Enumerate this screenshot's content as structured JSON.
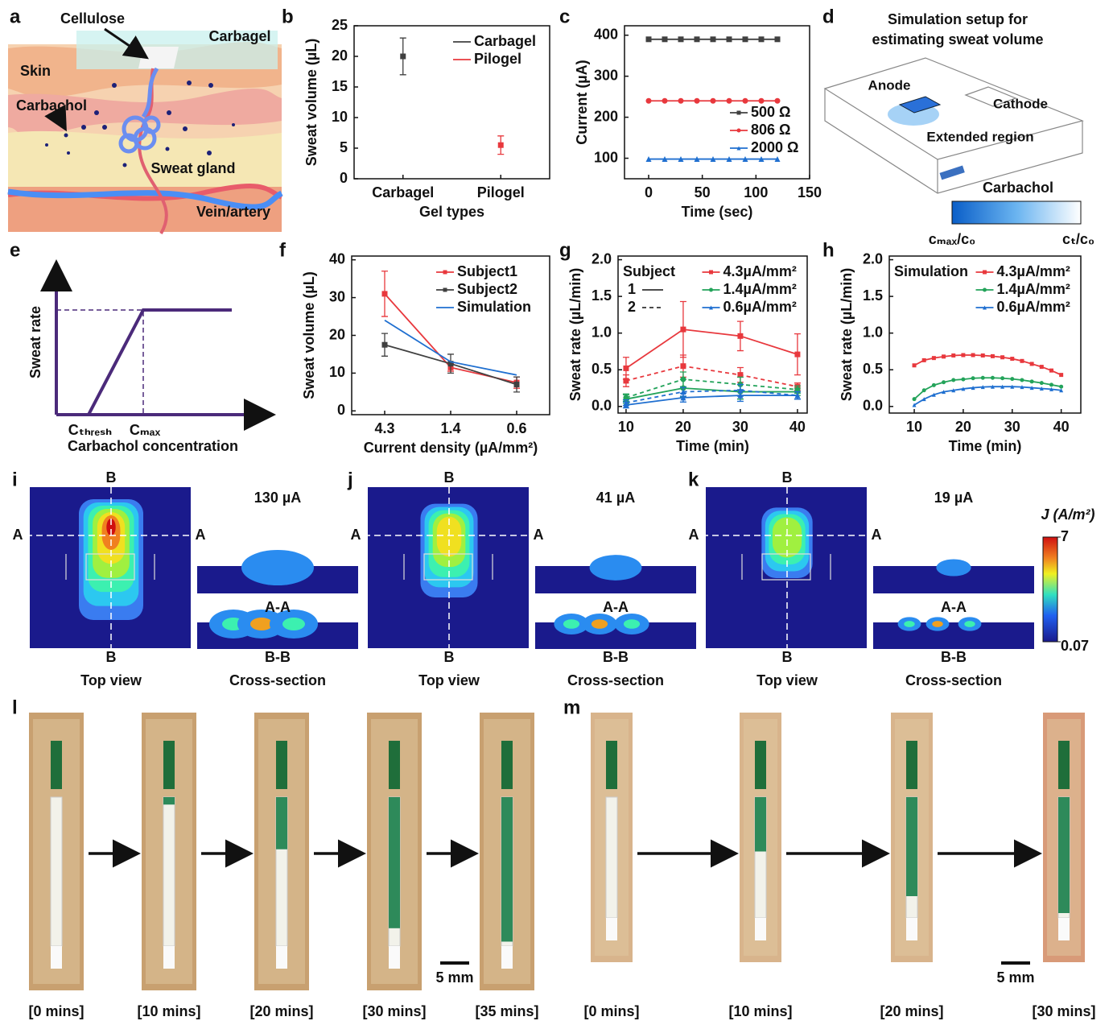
{
  "panel_a": {
    "letter": "a",
    "labels": [
      "Cellulose",
      "Carbagel",
      "Skin",
      "Carbachol",
      "Sweat gland",
      "Vein/artery"
    ]
  },
  "chart_data": [
    {
      "panel": "b",
      "type": "scatter",
      "categories": [
        "Carbagel",
        "Pilogel"
      ],
      "x_label": "Gel types",
      "y_label": "Sweat volume (µL)",
      "ylim": [
        0,
        25
      ],
      "yticks": [
        0,
        5,
        10,
        15,
        20,
        25
      ],
      "legend": "upper right",
      "series": [
        {
          "name": "Carbagel",
          "color": "#404040",
          "marker": "square",
          "values": [
            20,
            null
          ],
          "errors": [
            3,
            null
          ]
        },
        {
          "name": "Pilogel",
          "color": "#e8383d",
          "marker": "square",
          "values": [
            null,
            5.5
          ],
          "errors": [
            null,
            1.5
          ]
        }
      ]
    },
    {
      "panel": "c",
      "type": "line",
      "x_label": "Time (sec)",
      "y_label": "Current (µA)",
      "xlim": [
        -22.5,
        150
      ],
      "xticks": [
        0,
        50,
        100,
        150
      ],
      "ylim": [
        50,
        423
      ],
      "yticks": [
        100,
        200,
        300,
        400
      ],
      "legend": "lower right",
      "x": [
        0,
        15,
        30,
        45,
        60,
        75,
        90,
        105,
        120
      ],
      "series": [
        {
          "name": "500 Ω",
          "color": "#404040",
          "marker": "square",
          "values": [
            390,
            390,
            390,
            390,
            390,
            390,
            390,
            390,
            390
          ]
        },
        {
          "name": "806 Ω",
          "color": "#e8383d",
          "marker": "circle",
          "values": [
            240,
            240,
            240,
            240,
            240,
            240,
            240,
            240,
            240
          ]
        },
        {
          "name": "2000 Ω",
          "color": "#1f6fd0",
          "marker": "triangle",
          "values": [
            98,
            98,
            98,
            98,
            98,
            98,
            98,
            98,
            98
          ]
        }
      ]
    },
    {
      "panel": "f",
      "type": "line",
      "categories": [
        "4.3",
        "1.4",
        "0.6"
      ],
      "x_label": "Current density (µA/mm²)",
      "y_label": "Sweat volume (µL)",
      "ylim": [
        -1,
        41
      ],
      "yticks": [
        0,
        10,
        20,
        30,
        40
      ],
      "legend": "upper right",
      "series": [
        {
          "name": "Subject1",
          "color": "#e8383d",
          "marker": "square",
          "values": [
            31,
            11.5,
            7.5
          ],
          "errors": [
            6,
            1,
            1.5
          ]
        },
        {
          "name": "Subject2",
          "color": "#404040",
          "marker": "square",
          "values": [
            17.5,
            12.5,
            7
          ],
          "errors": [
            3,
            2.5,
            2
          ]
        },
        {
          "name": "Simulation",
          "color": "#1f6fd0",
          "values": [
            24,
            13,
            9.5
          ]
        }
      ]
    },
    {
      "panel": "g",
      "type": "line",
      "x_label": "Time (min)",
      "y_label": "Sweat rate (µL/min)",
      "xlim": [
        8.6,
        41.7
      ],
      "xticks": [
        10,
        20,
        30,
        40
      ],
      "ylim": [
        -0.09,
        2.05
      ],
      "yticks": [
        {
          "value": 0,
          "label": "0.0"
        },
        0.5,
        {
          "value": 1,
          "label": "1.0"
        },
        1.5,
        {
          "value": 2,
          "label": "2.0"
        }
      ],
      "legend": "upper right",
      "legend_title": "Subject",
      "line_styles": [
        {
          "label": "1",
          "dash": "solid"
        },
        {
          "label": "2",
          "dash": "dashed"
        }
      ],
      "legend_entries": [
        {
          "label": "4.3µA/mm²",
          "color": "#e8383d"
        },
        {
          "label": "1.4µA/mm²",
          "color": "#23a35a"
        },
        {
          "label": "0.6µA/mm²",
          "color": "#1f6fd0"
        }
      ],
      "x": [
        10,
        20,
        30,
        40
      ],
      "series": [
        {
          "color": "#e8383d",
          "dash": "solid",
          "marker": "square",
          "values": [
            0.52,
            1.05,
            0.96,
            0.71
          ],
          "errors": [
            0.15,
            0.38,
            0.2,
            0.28
          ]
        },
        {
          "color": "#e8383d",
          "dash": "dashed",
          "marker": "square",
          "values": [
            0.35,
            0.55,
            0.43,
            0.27
          ],
          "errors": [
            0.08,
            0.15,
            0.1,
            0.05
          ]
        },
        {
          "color": "#23a35a",
          "dash": "solid",
          "marker": "circle",
          "values": [
            0.1,
            0.25,
            0.2,
            0.2
          ],
          "errors": [
            0.06,
            0.12,
            0.1,
            0.05
          ]
        },
        {
          "color": "#23a35a",
          "dash": "dashed",
          "marker": "circle",
          "values": [
            0.12,
            0.37,
            0.3,
            0.23
          ],
          "errors": [
            0.05,
            0.1,
            0.1,
            0.05
          ]
        },
        {
          "color": "#1f6fd0",
          "dash": "solid",
          "marker": "triangle",
          "values": [
            0.02,
            0.12,
            0.15,
            0.15
          ],
          "errors": [
            0.04,
            0.06,
            0.08,
            0.05
          ]
        },
        {
          "color": "#1f6fd0",
          "dash": "dashed",
          "marker": "triangle",
          "values": [
            0.05,
            0.2,
            0.22,
            0.15
          ],
          "errors": [
            0.04,
            0.06,
            0.08,
            0.05
          ]
        }
      ]
    },
    {
      "panel": "h",
      "type": "line",
      "x_label": "Time (min)",
      "y_label": "Sweat rate (µL/min)",
      "xlim": [
        4.9,
        44
      ],
      "xticks": [
        10,
        20,
        30,
        40
      ],
      "ylim": [
        -0.09,
        2.05
      ],
      "yticks": [
        {
          "value": 0,
          "label": "0.0"
        },
        0.5,
        {
          "value": 1,
          "label": "1.0"
        },
        1.5,
        {
          "value": 2,
          "label": "2.0"
        }
      ],
      "legend": "upper right",
      "legend_title": "Simulation",
      "x": [
        10,
        12,
        14,
        16,
        18,
        20,
        22,
        24,
        26,
        28,
        30,
        32,
        34,
        36,
        38,
        40
      ],
      "series": [
        {
          "name": "4.3µA/mm²",
          "color": "#e8383d",
          "marker": "square",
          "values": [
            0.56,
            0.63,
            0.66,
            0.68,
            0.695,
            0.7,
            0.7,
            0.695,
            0.685,
            0.67,
            0.65,
            0.62,
            0.58,
            0.54,
            0.49,
            0.43
          ]
        },
        {
          "name": "1.4µA/mm²",
          "color": "#23a35a",
          "marker": "circle",
          "values": [
            0.1,
            0.22,
            0.29,
            0.33,
            0.36,
            0.37,
            0.385,
            0.39,
            0.39,
            0.385,
            0.375,
            0.36,
            0.34,
            0.32,
            0.295,
            0.27
          ]
        },
        {
          "name": "0.6µA/mm²",
          "color": "#1f6fd0",
          "marker": "triangle",
          "values": [
            0.02,
            0.1,
            0.16,
            0.2,
            0.22,
            0.24,
            0.255,
            0.265,
            0.27,
            0.27,
            0.27,
            0.265,
            0.255,
            0.245,
            0.235,
            0.22
          ]
        }
      ]
    }
  ],
  "panel_d": {
    "letter": "d",
    "title": [
      "Simulation setup for",
      "estimating sweat volume"
    ],
    "labels": [
      "Anode",
      "Cathode",
      "Extended region"
    ],
    "colorbar": {
      "title": "Carbachol",
      "low": "cₘₐₓ/c₀",
      "high": "cₜ/c₀"
    }
  },
  "panel_e": {
    "letter": "e",
    "y_label": "Sweat rate",
    "x_label": "Carbachol concentration",
    "x_marks": [
      "Cₜₕᵣₑₛₕ",
      "Cₘₐₓ"
    ]
  },
  "simulations": [
    {
      "letter": "i",
      "current": "130 µA",
      "top": "B",
      "bottom": "B",
      "left": "A",
      "right": "A",
      "top_caption": "Top view",
      "sections": [
        "A-A",
        "B-B"
      ],
      "section_caption": "Cross-section"
    },
    {
      "letter": "j",
      "current": "41 µA",
      "top": "B",
      "bottom": "B",
      "left": "A",
      "right": "A",
      "top_caption": "Top view",
      "sections": [
        "A-A",
        "B-B"
      ],
      "section_caption": "Cross-section"
    },
    {
      "letter": "k",
      "current": "19 µA",
      "top": "B",
      "bottom": "B",
      "left": "A",
      "right": "A",
      "top_caption": "Top view",
      "sections": [
        "A-A",
        "B-B"
      ],
      "section_caption": "Cross-section"
    }
  ],
  "colorbar": {
    "title": "J (A/m²)",
    "ticks": [
      0.07,
      7
    ]
  },
  "photos": [
    {
      "letter": "l",
      "times": [
        "[0 mins]",
        "[10 mins]",
        "[20 mins]",
        "[30 mins]",
        "[35 mins]"
      ],
      "scale": "5 mm"
    },
    {
      "letter": "m",
      "times": [
        "[0 mins]",
        "[10 mins]",
        "[20 mins]",
        "[30 mins]"
      ],
      "scale": "5 mm"
    }
  ]
}
